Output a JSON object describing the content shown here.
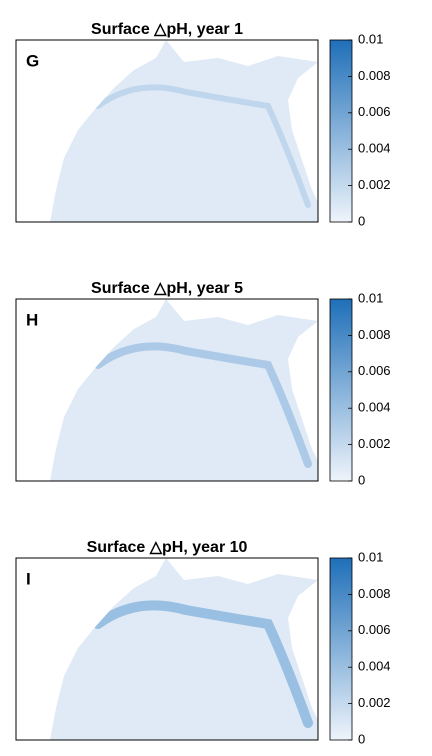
{
  "chart_data": [
    {
      "type": "map",
      "title": "Surface △pH, year 1",
      "panel_label": "G",
      "clim": [
        0,
        0.01
      ],
      "cticks": [
        0,
        0.002,
        0.004,
        0.006,
        0.008,
        0.01
      ]
    },
    {
      "type": "map",
      "title": "Surface △pH, year 5",
      "panel_label": "H",
      "clim": [
        0,
        0.01
      ],
      "cticks": [
        0,
        0.002,
        0.004,
        0.006,
        0.008,
        0.01
      ]
    },
    {
      "type": "map",
      "title": "Surface △pH, year 10",
      "panel_label": "I",
      "clim": [
        0,
        0.01
      ],
      "cticks": [
        0,
        0.002,
        0.004,
        0.006,
        0.008,
        0.01
      ]
    }
  ]
}
